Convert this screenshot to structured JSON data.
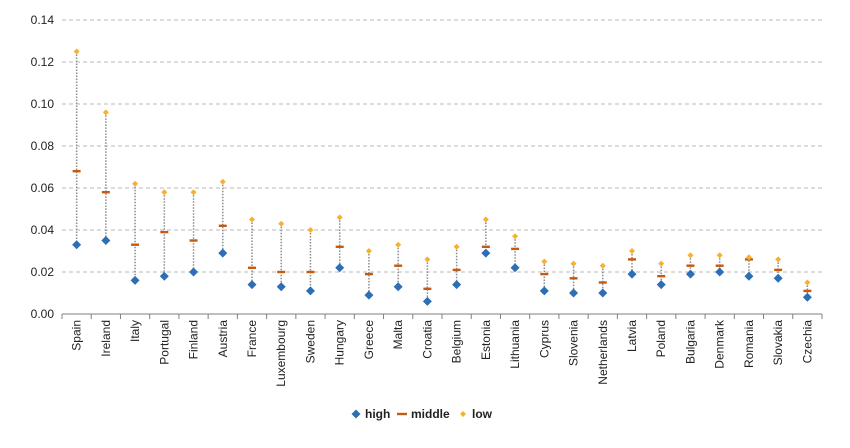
{
  "chart_data": {
    "type": "scatter",
    "title": "",
    "xlabel": "",
    "ylabel": "",
    "ylim": [
      0,
      0.14
    ],
    "yticks": [
      "0.00",
      "0.02",
      "0.04",
      "0.06",
      "0.08",
      "0.10",
      "0.12",
      "0.14"
    ],
    "grid": "horizontal dashed",
    "legend_position": "bottom",
    "categories": [
      "Spain",
      "Ireland",
      "Italy",
      "Portugal",
      "Finland",
      "Austria",
      "France",
      "Luxembourg",
      "Sweden",
      "Hungary",
      "Greece",
      "Malta",
      "Croatia",
      "Belgium",
      "Estonia",
      "Lithuania",
      "Cyprus",
      "Slovenia",
      "Netherlands",
      "Latvia",
      "Poland",
      "Bulgaria",
      "Denmark",
      "Romania",
      "Slovakia",
      "Czechia"
    ],
    "series": [
      {
        "name": "high",
        "color": "#2e6eb5",
        "marker": "diamond",
        "values": [
          0.033,
          0.035,
          0.016,
          0.018,
          0.02,
          0.029,
          0.014,
          0.013,
          0.011,
          0.022,
          0.009,
          0.013,
          0.006,
          0.014,
          0.029,
          0.022,
          0.011,
          0.01,
          0.01,
          0.019,
          0.014,
          0.019,
          0.02,
          0.018,
          0.017,
          0.008
        ]
      },
      {
        "name": "middle",
        "color": "#c55a11",
        "marker": "dash",
        "values": [
          0.068,
          0.058,
          0.033,
          0.039,
          0.035,
          0.042,
          0.022,
          0.02,
          0.02,
          0.032,
          0.019,
          0.023,
          0.012,
          0.021,
          0.032,
          0.031,
          0.019,
          0.017,
          0.015,
          0.026,
          0.018,
          0.023,
          0.023,
          0.026,
          0.021,
          0.011
        ]
      },
      {
        "name": "low",
        "color": "#f5b12f",
        "marker": "diamond-small",
        "values": [
          0.125,
          0.096,
          0.062,
          0.058,
          0.058,
          0.063,
          0.045,
          0.043,
          0.04,
          0.046,
          0.03,
          0.033,
          0.026,
          0.032,
          0.045,
          0.037,
          0.025,
          0.024,
          0.023,
          0.03,
          0.024,
          0.028,
          0.028,
          0.027,
          0.026,
          0.015
        ]
      }
    ]
  }
}
